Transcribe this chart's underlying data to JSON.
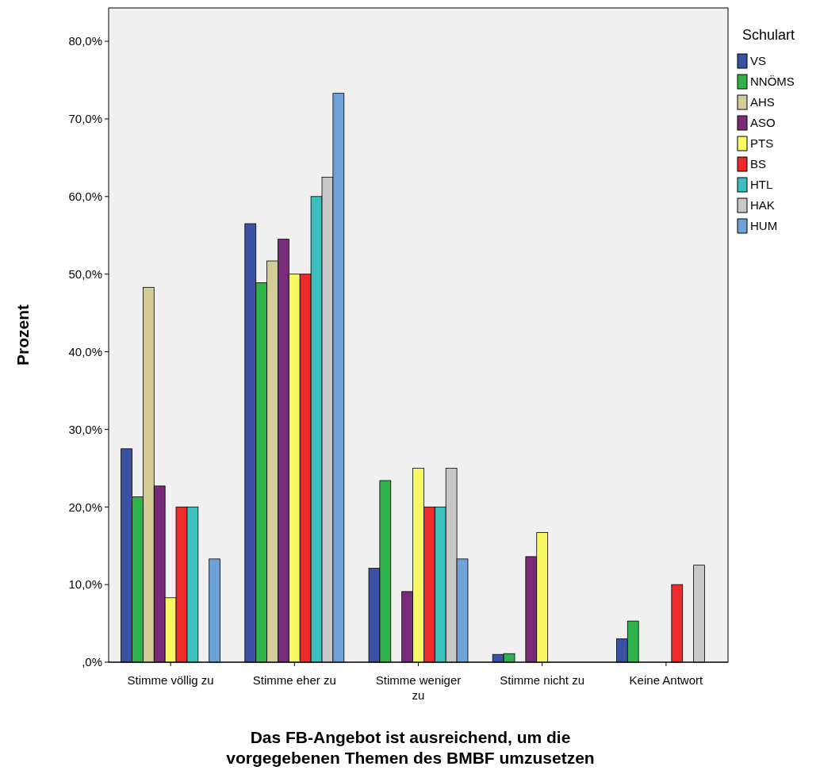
{
  "chart_data": {
    "type": "bar",
    "xlabel": "Das FB-Angebot ist ausreichend, um die vorgegebenen Themen des BMBF umzusetzen",
    "ylabel": "Prozent",
    "legend_title": "Schulart",
    "legend": "right",
    "categories": [
      "Stimme völlig zu",
      "Stimme eher zu",
      "Stimme weniger zu",
      "Stimme nicht zu",
      "Keine Antwort"
    ],
    "ylim": [
      0,
      84.3
    ],
    "yticks": [
      {
        "value": 0,
        "label": ",0%"
      },
      {
        "value": 10,
        "label": "10,0%"
      },
      {
        "value": 20,
        "label": "20,0%"
      },
      {
        "value": 30,
        "label": "30,0%"
      },
      {
        "value": 40,
        "label": "40,0%"
      },
      {
        "value": 50,
        "label": "50,0%"
      },
      {
        "value": 60,
        "label": "60,0%"
      },
      {
        "value": 70,
        "label": "70,0%"
      },
      {
        "value": 80,
        "label": "80,0%"
      }
    ],
    "series": [
      {
        "name": "VS",
        "color": "#3a52a4",
        "values": [
          27.5,
          56.5,
          12.1,
          1.0,
          3.0
        ]
      },
      {
        "name": "NNÖMS",
        "color": "#2db34a",
        "values": [
          21.3,
          48.9,
          23.4,
          1.1,
          5.3
        ]
      },
      {
        "name": "AHS",
        "color": "#d4cc96",
        "values": [
          48.3,
          51.7,
          0,
          0,
          0
        ]
      },
      {
        "name": "ASO",
        "color": "#7a2a7a",
        "values": [
          22.7,
          54.5,
          9.1,
          13.6,
          0
        ]
      },
      {
        "name": "PTS",
        "color": "#f8f862",
        "values": [
          8.3,
          50,
          25,
          16.7,
          0
        ]
      },
      {
        "name": "BS",
        "color": "#ee2a2a",
        "values": [
          20,
          50,
          20,
          0,
          10
        ]
      },
      {
        "name": "HTL",
        "color": "#3cbfbf",
        "values": [
          20,
          60,
          20,
          0,
          0
        ]
      },
      {
        "name": "HAK",
        "color": "#c8c8c8",
        "values": [
          0,
          62.5,
          25,
          0,
          12.5
        ]
      },
      {
        "name": "HUM",
        "color": "#6fa3d8",
        "values": [
          13.3,
          73.3,
          13.3,
          0,
          0
        ]
      }
    ]
  }
}
